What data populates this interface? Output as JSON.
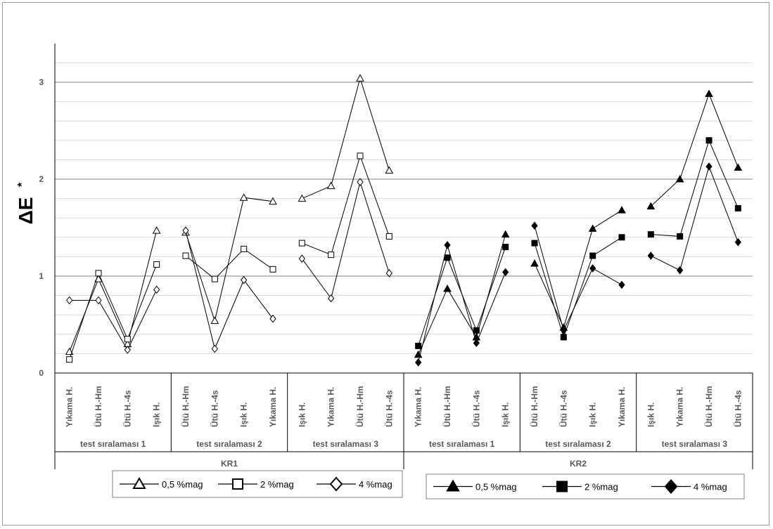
{
  "chart_data": {
    "type": "line",
    "ylabel": "ΔE",
    "ylabel_sup": "*",
    "ylim": [
      0,
      3.2
    ],
    "yticks": [
      "0",
      "1",
      "2",
      "3"
    ],
    "grid": true,
    "categories": [
      "Yıkama H.",
      "Ütü H.-Hm",
      "Ütü H.-4s",
      "Işık H.",
      "Ütü H.-Hm",
      "Ütü H.-4s",
      "Işık H.",
      "Yıkama H.",
      "Işık H.",
      "Yıkama H.",
      "Ütü H.-Hm",
      "Ütü H.-4s",
      "Yıkama H.",
      "Ütü H.-Hm",
      "Ütü H.-4s",
      "Işık H.",
      "Ütü H.-Hm",
      "Ütü H.-4s",
      "Işık H.",
      "Yıkama H.",
      "Işık H.",
      "Yıkama H.",
      "Ütü H.-Hm",
      "Ütü H.-4s"
    ],
    "groups": [
      "test sıralaması 1",
      "test sıralaması 2",
      "test sıralaması 3",
      "test sıralaması 1",
      "test sıralaması 2",
      "test sıralaması 3"
    ],
    "supergroups": [
      "KR1",
      "KR2"
    ],
    "series": [
      {
        "name": "0,5 %mag",
        "marker": "triangle-open",
        "values": [
          0.22,
          0.97,
          0.3,
          1.47,
          1.45,
          0.54,
          1.81,
          1.77,
          1.8,
          1.93,
          3.04,
          2.09,
          0.19,
          0.87,
          0.37,
          1.43,
          1.13,
          0.47,
          1.49,
          1.68,
          1.72,
          2.0,
          2.88,
          2.12
        ]
      },
      {
        "name": "2 %mag",
        "marker": "square-open",
        "values": [
          0.14,
          1.03,
          0.35,
          1.12,
          1.21,
          0.97,
          1.28,
          1.07,
          1.34,
          1.22,
          2.24,
          1.41,
          0.28,
          1.19,
          0.44,
          1.3,
          1.34,
          0.37,
          1.21,
          1.4,
          1.43,
          1.41,
          2.4,
          1.7
        ]
      },
      {
        "name": "4 %mag",
        "marker": "diamond-open",
        "values": [
          0.75,
          0.75,
          0.24,
          0.86,
          1.47,
          0.25,
          0.96,
          0.56,
          1.18,
          0.77,
          1.97,
          1.03,
          0.11,
          1.32,
          0.31,
          1.04,
          1.52,
          0.44,
          1.08,
          0.91,
          1.21,
          1.06,
          2.13,
          1.35
        ]
      }
    ],
    "legend": {
      "left": [
        {
          "label": "0,5 %mag",
          "marker": "triangle-open"
        },
        {
          "label": "2 %mag",
          "marker": "square-open"
        },
        {
          "label": "4 %mag",
          "marker": "diamond-open"
        }
      ],
      "right": [
        {
          "label": "0,5 %mag",
          "marker": "triangle-filled"
        },
        {
          "label": "2 %mag",
          "marker": "square-filled"
        },
        {
          "label": "4 %mag",
          "marker": "diamond-filled"
        }
      ],
      "placement": "bottom"
    },
    "colors": {
      "line": "#000000",
      "grid": "#7f7f7f",
      "minor_grid": "#d9d9d9",
      "text": "#595959"
    }
  }
}
